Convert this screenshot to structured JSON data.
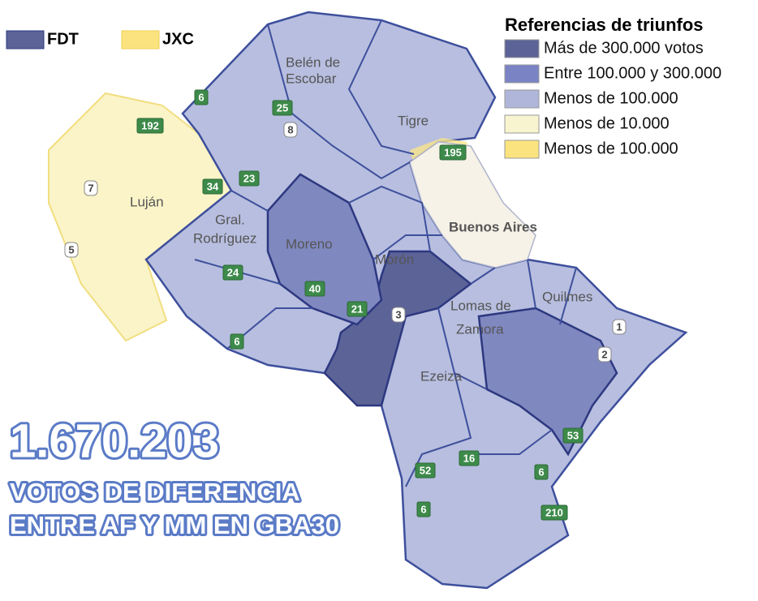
{
  "party_legend": [
    "FDT",
    "JXC"
  ],
  "reference_legend": {
    "title": "Referencias de triunfos",
    "items": [
      "Más de 300.000 votos",
      "Entre 100.000 y 300.000",
      "Menos de 100.000",
      "Menos de 10.000",
      "Menos de 100.000"
    ]
  },
  "place_labels": [
    "Belén de",
    "Escobar",
    "Tigre",
    "Luján",
    "Gral.",
    "Rodríguez",
    "Moreno",
    "Morón",
    "Buenos Aires",
    "Lomas de",
    "Zamora",
    "Quilmes",
    "Ezeiza"
  ],
  "road_labels": [
    "6",
    "25",
    "8",
    "192",
    "7",
    "34",
    "23",
    "5",
    "24",
    "40",
    "21",
    "3",
    "6",
    "195",
    "1",
    "2",
    "53",
    "16",
    "52",
    "6",
    "6",
    "210"
  ],
  "headline": {
    "number": "1.670.203",
    "line1": "VOTOS DE DIFERENCIA",
    "line2": "ENTRE AF Y MM EN GBA30"
  }
}
